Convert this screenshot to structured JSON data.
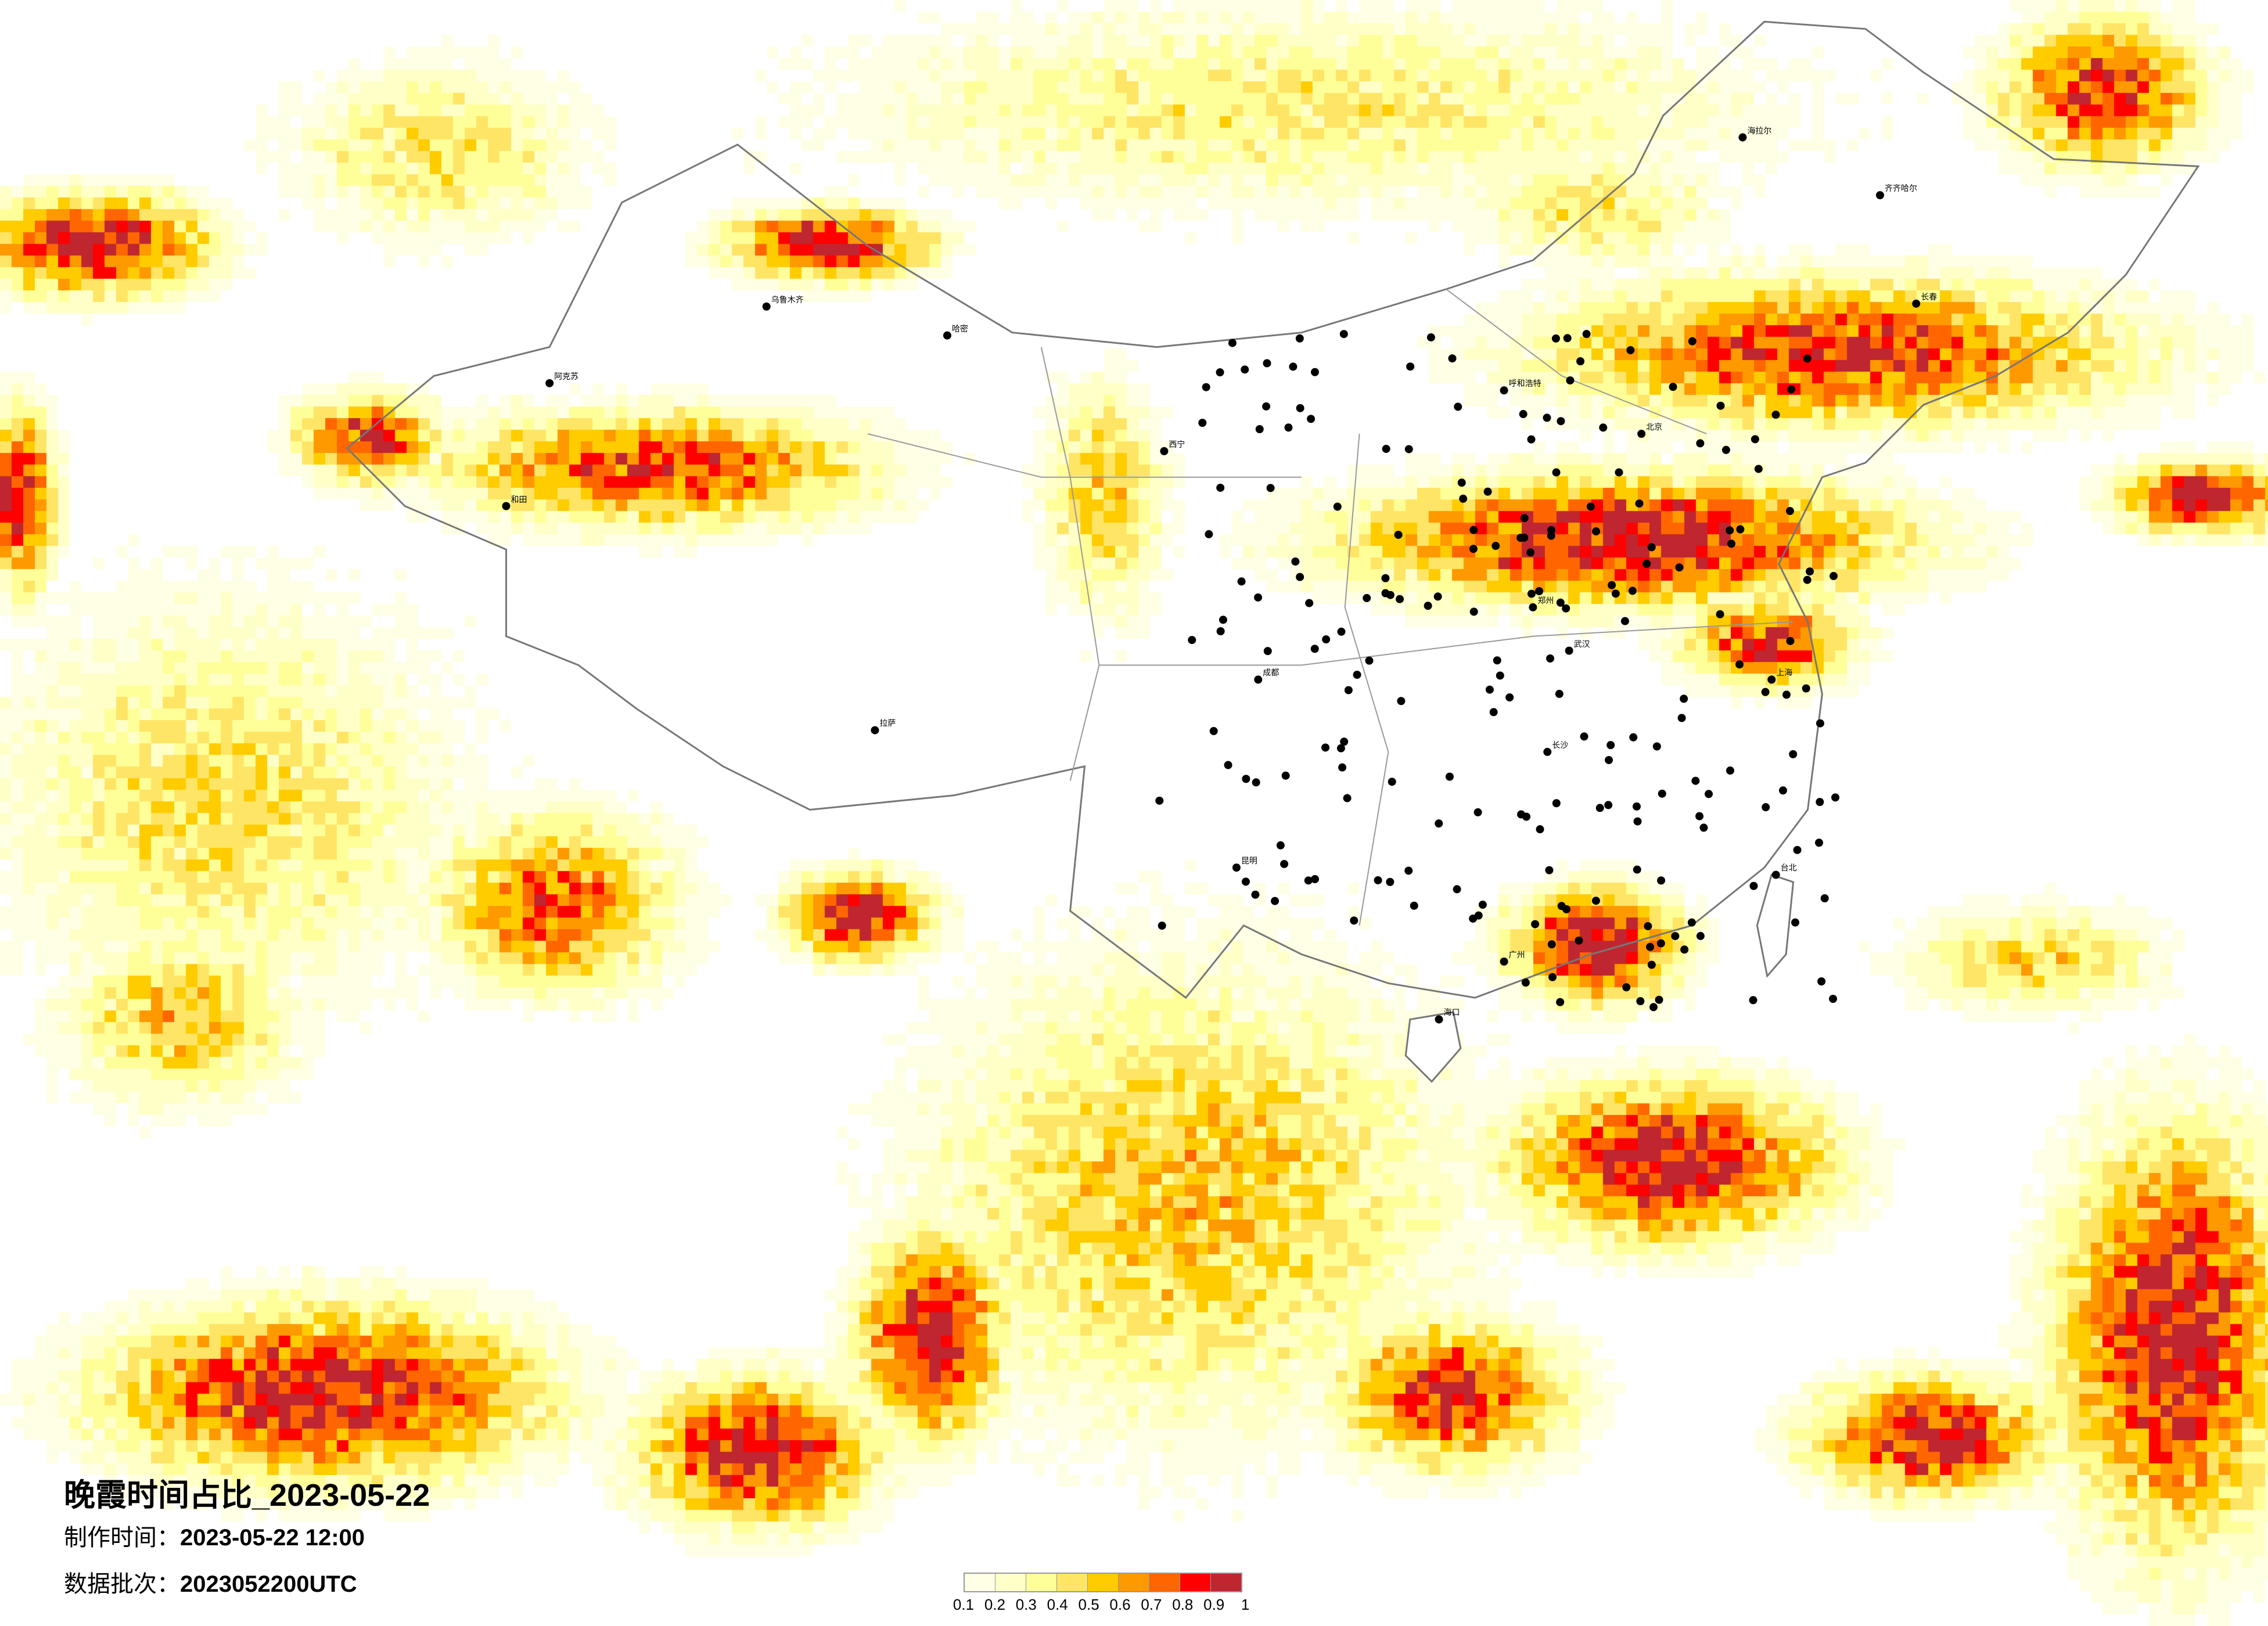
{
  "title": "晚霞时间占比_2023-05-22",
  "info": {
    "made_label": "制作时间：",
    "made_value": "2023-05-22 12:00",
    "batch_label": "数据批次：",
    "batch_value": "2023052200UTC"
  },
  "legend": {
    "ticks": [
      "0.1",
      "0.2",
      "0.3",
      "0.4",
      "0.5",
      "0.6",
      "0.7",
      "0.8",
      "0.9",
      "1"
    ],
    "colors": [
      "#FFFFE5",
      "#FFFFC8",
      "#FFFF99",
      "#FFE566",
      "#FFCC00",
      "#FF9900",
      "#FF6600",
      "#FF0000",
      "#BF2630"
    ]
  },
  "cities": [
    "乌鲁木齐",
    "哈密",
    "阿克苏",
    "和田",
    "拉萨",
    "西宁",
    "呼和浩特",
    "齐齐哈尔",
    "海拉尔",
    "长春",
    "北京",
    "郑州",
    "武汉",
    "长沙",
    "广州",
    "海口",
    "台北",
    "昆明",
    "成都",
    "上海"
  ]
}
